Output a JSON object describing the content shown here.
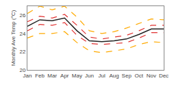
{
  "chart_data": {
    "type": "line",
    "ylabel": "Monthly Ave Temp (°C)",
    "categories": [
      "Jan",
      "Feb",
      "Mar",
      "Apr",
      "May",
      "Jun",
      "Jul",
      "Aug",
      "Sep",
      "Oct",
      "Nov",
      "Dec"
    ],
    "series": [
      {
        "color": "#ffaa00",
        "line_style": "dashed",
        "values": [
          26.2,
          27.0,
          26.6,
          27.0,
          25.8,
          24.3,
          24.0,
          24.2,
          24.6,
          25.1,
          25.6,
          25.5
        ]
      },
      {
        "color": "#ffaa00",
        "line_style": "dashed",
        "values": [
          23.5,
          24.0,
          24.0,
          24.2,
          23.0,
          22.1,
          21.9,
          22.1,
          22.3,
          22.8,
          23.1,
          23.0
        ]
      },
      {
        "color": "#e03030",
        "line_style": "dashed",
        "values": [
          25.3,
          25.9,
          25.7,
          26.1,
          24.9,
          23.6,
          23.4,
          23.6,
          23.8,
          24.3,
          24.9,
          24.9
        ]
      },
      {
        "color": "#e03030",
        "line_style": "dashed",
        "values": [
          24.3,
          25.0,
          24.9,
          25.2,
          23.8,
          22.9,
          22.8,
          22.9,
          23.0,
          23.5,
          24.1,
          24.1
        ]
      },
      {
        "color": "#222222",
        "line_style": "solid",
        "values": [
          24.8,
          25.5,
          25.4,
          25.7,
          24.3,
          23.2,
          23.1,
          23.2,
          23.4,
          23.9,
          24.5,
          24.5
        ]
      }
    ],
    "ylim": [
      20,
      27
    ],
    "yticks": [
      20,
      22,
      24,
      26
    ],
    "grid": false
  }
}
